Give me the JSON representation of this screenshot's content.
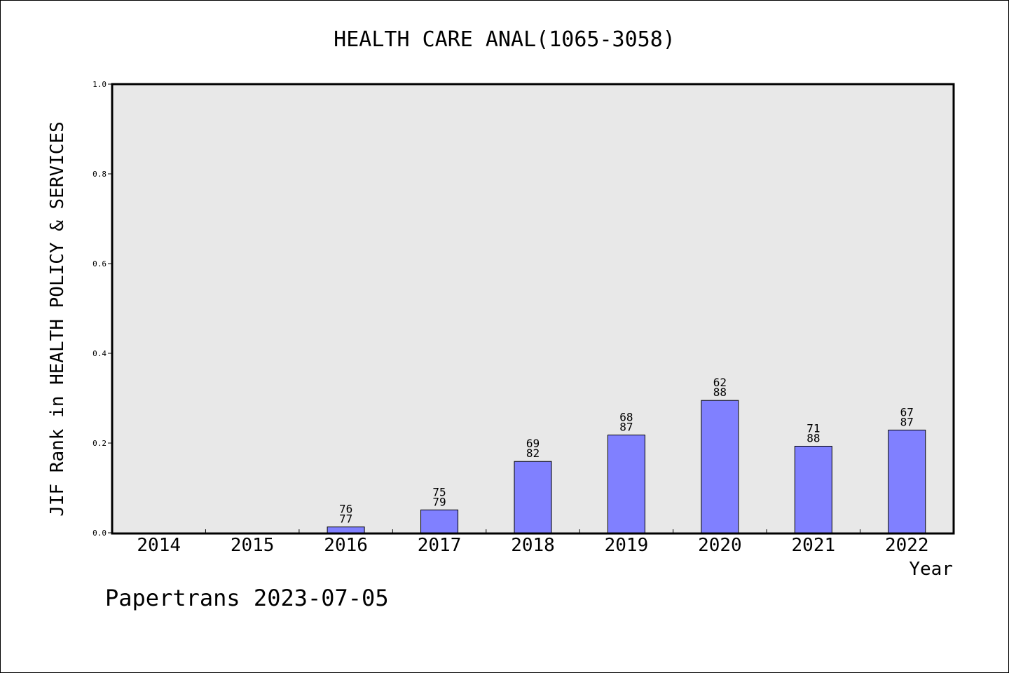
{
  "chart_data": {
    "type": "bar",
    "title": "HEALTH CARE ANAL(1065-3058)",
    "xlabel": "Year",
    "ylabel": "JIF Rank in HEALTH POLICY & SERVICES",
    "ylim": [
      0,
      1.0
    ],
    "yticks": [
      "0.0",
      "0.2",
      "0.4",
      "0.6",
      "0.8",
      "1.0"
    ],
    "categories": [
      "2014",
      "2015",
      "2016",
      "2017",
      "2018",
      "2019",
      "2020",
      "2021",
      "2022"
    ],
    "values": [
      null,
      null,
      0.013,
      0.051,
      0.159,
      0.218,
      0.295,
      0.193,
      0.229
    ],
    "labels_top": [
      "",
      "",
      "76",
      "75",
      "69",
      "68",
      "62",
      "71",
      "67"
    ],
    "labels_bottom": [
      "",
      "",
      "77",
      "79",
      "82",
      "87",
      "88",
      "88",
      "87"
    ],
    "bar_color": "#8080ff",
    "plot_background": "#e8e8e8",
    "grid": false,
    "legend": "none"
  },
  "footer": "Papertrans 2023-07-05"
}
